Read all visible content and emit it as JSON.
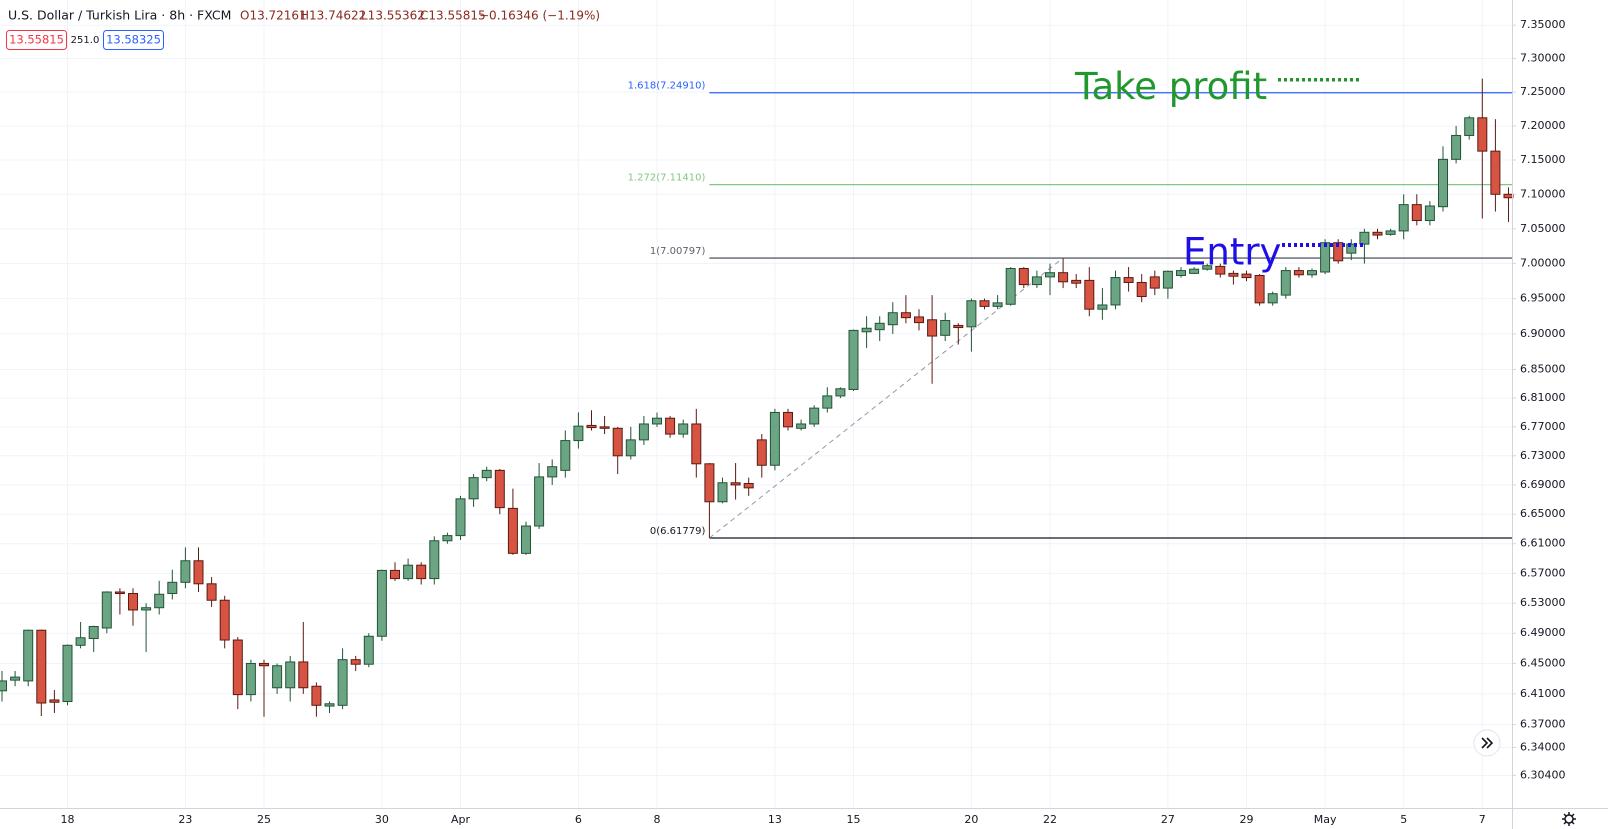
{
  "chart_data": {
    "type": "candlestick",
    "header": {
      "symbol": "U.S. Dollar / Turkish Lira · 8h · FXCM",
      "o": "O13.72161",
      "h": "H13.74622",
      "l": "L13.55362",
      "c": "C13.55815",
      "change": "−0.16346 (−1.19%)"
    },
    "price_boxes": {
      "sell": "13.55815",
      "spread": "251.0",
      "buy": "13.58325"
    },
    "categories": [
      null,
      null,
      null,
      null,
      null,
      "18",
      null,
      null,
      null,
      null,
      null,
      null,
      null,
      null,
      "23",
      null,
      null,
      null,
      null,
      null,
      "25",
      null,
      null,
      null,
      null,
      null,
      null,
      null,
      null,
      "30",
      null,
      null,
      null,
      null,
      null,
      "Apr",
      null,
      null,
      null,
      null,
      null,
      null,
      null,
      null,
      "6",
      null,
      null,
      null,
      null,
      null,
      "8",
      null,
      null,
      null,
      null,
      null,
      null,
      null,
      null,
      "13",
      null,
      null,
      null,
      null,
      null,
      "15",
      null,
      null,
      null,
      null,
      null,
      null,
      null,
      null,
      "20",
      null,
      null,
      null,
      null,
      null,
      "22",
      null,
      null,
      null,
      null,
      null,
      null,
      null,
      null,
      "27",
      null,
      null,
      null,
      null,
      null,
      "29",
      null,
      null,
      null,
      null,
      null,
      "May",
      null,
      null,
      null,
      null,
      null,
      "5",
      null,
      null,
      null,
      null,
      null,
      "7",
      null,
      null
    ],
    "open": [
      6.414,
      6.428,
      6.427,
      6.494,
      6.402,
      6.4,
      6.474,
      6.483,
      6.497,
      6.545,
      6.543,
      6.521,
      6.524,
      6.543,
      6.558,
      6.587,
      6.556,
      6.534,
      6.481,
      6.409,
      6.45,
      6.418,
      6.418,
      6.452,
      6.42,
      6.394,
      6.395,
      6.455,
      6.449,
      6.486,
      6.574,
      6.563,
      6.581,
      6.563,
      6.614,
      6.621,
      6.671,
      6.7,
      6.71,
      6.658,
      6.597,
      6.634,
      6.701,
      6.71,
      6.751,
      6.772,
      6.77,
      6.768,
      6.73,
      6.752,
      6.774,
      6.782,
      6.76,
      6.774,
      6.719,
      6.667,
      6.693,
      6.692,
      6.752,
      6.717,
      6.79,
      6.768,
      6.774,
      6.796,
      6.813,
      6.822,
      6.903,
      6.906,
      6.913,
      6.93,
      6.924,
      6.92,
      6.898,
      6.912,
      6.91,
      6.947,
      6.939,
      6.942,
      6.993,
      6.97,
      6.981,
      6.987,
      6.976,
      6.976,
      6.935,
      6.941,
      6.98,
      6.973,
      6.981,
      6.965,
      6.983,
      6.986,
      6.992,
      6.996,
      6.986,
      6.985,
      6.983,
      6.944,
      6.955,
      6.99,
      6.984,
      6.988,
      7.03,
      7.015,
      7.028,
      7.045,
      7.042,
      7.047,
      7.085,
      7.062,
      7.082,
      7.151,
      7.186,
      7.212,
      7.163,
      7.1
    ],
    "high": [
      6.44,
      6.44,
      6.495,
      6.495,
      6.415,
      6.475,
      6.505,
      6.5,
      6.546,
      6.55,
      6.55,
      6.53,
      6.56,
      6.575,
      6.605,
      6.605,
      6.565,
      6.54,
      6.485,
      6.455,
      6.455,
      6.45,
      6.46,
      6.505,
      6.425,
      6.4,
      6.47,
      6.46,
      6.49,
      6.575,
      6.585,
      6.59,
      6.585,
      6.62,
      6.625,
      6.675,
      6.705,
      6.715,
      6.712,
      6.685,
      6.64,
      6.72,
      6.725,
      6.765,
      6.79,
      6.793,
      6.785,
      6.77,
      6.77,
      6.785,
      6.79,
      6.785,
      6.78,
      6.795,
      6.72,
      6.7,
      6.72,
      6.7,
      6.76,
      6.795,
      6.795,
      6.78,
      6.8,
      6.825,
      6.825,
      6.906,
      6.925,
      6.925,
      6.945,
      6.955,
      6.935,
      6.955,
      6.93,
      6.915,
      6.95,
      6.95,
      6.955,
      6.995,
      6.995,
      6.99,
      7.0,
      7.00797,
      6.985,
      6.995,
      6.965,
      6.99,
      6.995,
      6.985,
      6.99,
      6.99,
      6.995,
      6.995,
      7.0,
      7.0,
      6.99,
      6.99,
      6.985,
      6.96,
      6.995,
      6.995,
      6.993,
      7.035,
      7.035,
      7.035,
      7.05,
      7.05,
      7.05,
      7.1,
      7.1,
      7.09,
      7.17,
      7.2,
      7.215,
      7.27,
      7.21,
      7.11
    ],
    "low": [
      6.4,
      6.42,
      6.42,
      6.381,
      6.385,
      6.395,
      6.47,
      6.465,
      6.49,
      6.515,
      6.5,
      6.465,
      6.515,
      6.535,
      6.55,
      6.545,
      6.525,
      6.47,
      6.39,
      6.4,
      6.38,
      6.41,
      6.4,
      6.41,
      6.38,
      6.385,
      6.39,
      6.44,
      6.445,
      6.48,
      6.56,
      6.56,
      6.555,
      6.555,
      6.61,
      6.615,
      6.66,
      6.695,
      6.65,
      6.595,
      6.595,
      6.63,
      6.69,
      6.7,
      6.74,
      6.765,
      6.76,
      6.705,
      6.725,
      6.745,
      6.77,
      6.755,
      6.755,
      6.7,
      6.61779,
      6.665,
      6.67,
      6.675,
      6.7,
      6.71,
      6.765,
      6.765,
      6.77,
      6.79,
      6.81,
      6.82,
      6.88,
      6.89,
      6.9,
      6.915,
      6.905,
      6.83,
      6.89,
      6.885,
      6.875,
      6.935,
      6.935,
      6.94,
      6.965,
      6.965,
      6.955,
      6.965,
      6.965,
      6.925,
      6.92,
      6.935,
      6.96,
      6.945,
      6.955,
      6.95,
      6.98,
      6.985,
      6.99,
      6.98,
      6.97,
      6.975,
      6.94,
      6.94,
      6.95,
      6.98,
      6.98,
      6.985,
      7.0,
      7.005,
      7.0,
      7.035,
      7.04,
      7.035,
      7.055,
      7.055,
      7.075,
      7.145,
      7.18,
      7.065,
      7.075,
      7.06
    ],
    "close": [
      6.427,
      6.432,
      6.494,
      6.398,
      6.399,
      6.474,
      6.484,
      6.499,
      6.545,
      6.543,
      6.521,
      6.524,
      6.542,
      6.558,
      6.587,
      6.556,
      6.534,
      6.481,
      6.409,
      6.45,
      6.447,
      6.447,
      6.452,
      6.418,
      6.395,
      6.397,
      6.455,
      6.449,
      6.486,
      6.574,
      6.563,
      6.581,
      6.563,
      6.614,
      6.621,
      6.671,
      6.7,
      6.71,
      6.659,
      6.597,
      6.634,
      6.701,
      6.715,
      6.751,
      6.771,
      6.769,
      6.768,
      6.73,
      6.752,
      6.774,
      6.782,
      6.76,
      6.774,
      6.719,
      6.667,
      6.693,
      6.69,
      6.686,
      6.717,
      6.79,
      6.77,
      6.774,
      6.796,
      6.813,
      6.823,
      6.905,
      6.908,
      6.915,
      6.93,
      6.923,
      6.916,
      6.897,
      6.919,
      6.909,
      6.947,
      6.939,
      6.944,
      6.993,
      6.97,
      6.981,
      6.987,
      6.974,
      6.972,
      6.935,
      6.941,
      6.98,
      6.973,
      6.953,
      6.965,
      6.989,
      6.99,
      6.992,
      6.997,
      6.985,
      6.982,
      6.98,
      6.944,
      6.957,
      6.99,
      6.984,
      6.99,
      7.03,
      7.004,
      7.028,
      7.045,
      7.041,
      7.047,
      7.085,
      7.062,
      7.083,
      7.151,
      7.186,
      7.212,
      7.163,
      7.1,
      7.095
    ],
    "up_color": "#6ba583",
    "up_border": "#225437",
    "down_color": "#d75442",
    "down_border": "#5b1a13",
    "log_scale": true,
    "grid": true,
    "ylim": [
      6.262,
      7.388
    ],
    "yticks": [
      {
        "value": 7.35,
        "label": "7.35000"
      },
      {
        "value": 7.3,
        "label": "7.30000"
      },
      {
        "value": 7.25,
        "label": "7.25000"
      },
      {
        "value": 7.2,
        "label": "7.20000"
      },
      {
        "value": 7.15,
        "label": "7.15000"
      },
      {
        "value": 7.1,
        "label": "7.10000"
      },
      {
        "value": 7.05,
        "label": "7.05000"
      },
      {
        "value": 7.0,
        "label": "7.00000"
      },
      {
        "value": 6.95,
        "label": "6.95000"
      },
      {
        "value": 6.9,
        "label": "6.90000"
      },
      {
        "value": 6.85,
        "label": "6.85000"
      },
      {
        "value": 6.81,
        "label": "6.81000"
      },
      {
        "value": 6.77,
        "label": "6.77000"
      },
      {
        "value": 6.73,
        "label": "6.73000"
      },
      {
        "value": 6.69,
        "label": "6.69000"
      },
      {
        "value": 6.65,
        "label": "6.65000"
      },
      {
        "value": 6.61,
        "label": "6.61000"
      },
      {
        "value": 6.57,
        "label": "6.57000"
      },
      {
        "value": 6.53,
        "label": "6.53000"
      },
      {
        "value": 6.49,
        "label": "6.49000"
      },
      {
        "value": 6.45,
        "label": "6.45000"
      },
      {
        "value": 6.41,
        "label": "6.41000"
      },
      {
        "value": 6.37,
        "label": "6.37000"
      },
      {
        "value": 6.34,
        "label": "6.34000"
      },
      {
        "value": 6.304,
        "label": "6.30400"
      }
    ],
    "fib_levels": [
      {
        "label": "1.618(7.24910)",
        "value": 7.2491,
        "color": "#2962ff"
      },
      {
        "label": "1.272(7.11410)",
        "value": 7.1141,
        "color": "#81c784"
      },
      {
        "label": "1(7.00797)",
        "value": 7.00797,
        "color": "#5d606b"
      },
      {
        "label": "0(6.61779)",
        "value": 6.61779,
        "color": "#131722"
      }
    ],
    "annotations": [
      {
        "text": "Take profit",
        "color": "#22962f"
      },
      {
        "text": "Entry",
        "color": "#1e0fe6"
      }
    ]
  }
}
